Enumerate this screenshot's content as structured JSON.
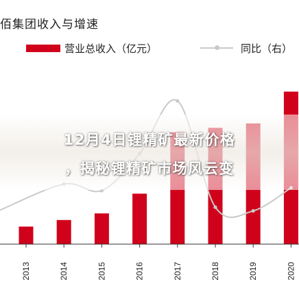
{
  "chart_data": {
    "type": "bar",
    "title": "佰集团收入与增速",
    "categories": [
      "2013",
      "2014",
      "2015",
      "2016",
      "2017",
      "2018",
      "2019",
      "2020"
    ],
    "series": [
      {
        "name": "营业总收入（亿元）",
        "kind": "bar",
        "axis": "left",
        "color": "#d0021b",
        "values": [
          1.6,
          2.2,
          2.8,
          4.6,
          10.2,
          10.6,
          11.0,
          13.9
        ]
      },
      {
        "name": "同比（右）",
        "kind": "line",
        "axis": "right",
        "color": "#c9c9c9",
        "values": [
          null,
          0.35,
          0.28,
          0.68,
          1.25,
          0.1,
          0.06,
          0.31
        ]
      }
    ],
    "xlabel": "",
    "ylabel": "",
    "ylim": [
      0,
      16
    ],
    "y2lim": [
      -0.3,
      1.6
    ],
    "grid": false,
    "legend": "top"
  },
  "overlay": {
    "line1": "12月4日锂精矿最新价格",
    "line2": "，揭秘锂精矿市场风云变"
  }
}
